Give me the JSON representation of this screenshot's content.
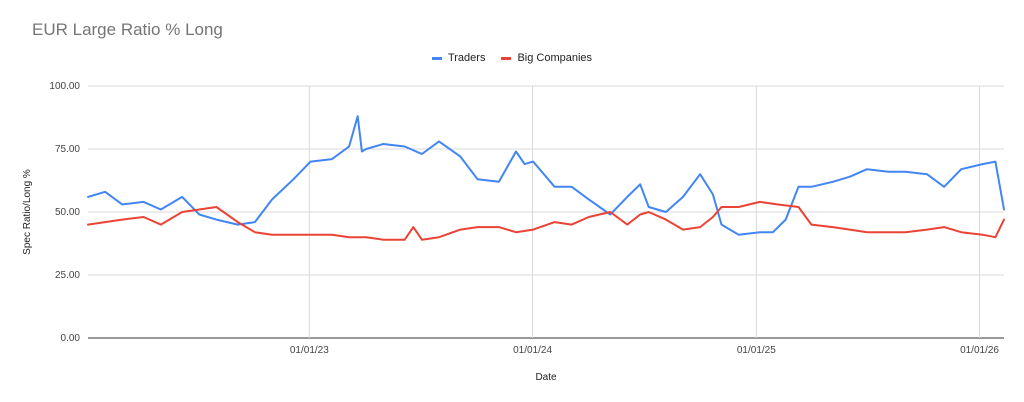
{
  "chart_data": {
    "type": "line",
    "title": "EUR Large Ratio % Long",
    "xlabel": "Date",
    "ylabel": "Spec Ratio/Long %",
    "ylim": [
      0,
      100
    ],
    "y_ticks": [
      "0.00",
      "25.00",
      "50.00",
      "75.00",
      "100.00"
    ],
    "x_ticks": [
      "01/01/23",
      "01/01/24",
      "01/01/25",
      "01/01/26"
    ],
    "x_range": [
      "2022-01-04",
      "2026-02-10"
    ],
    "legend_position": "top",
    "grid": true,
    "series": [
      {
        "name": "Traders",
        "color": "#4285f4",
        "x": [
          "2022-01-04",
          "2022-02-01",
          "2022-03-01",
          "2022-04-05",
          "2022-05-03",
          "2022-06-07",
          "2022-07-05",
          "2022-08-02",
          "2022-09-06",
          "2022-10-04",
          "2022-11-01",
          "2022-12-06",
          "2023-01-03",
          "2023-02-07",
          "2023-03-07",
          "2023-03-21",
          "2023-03-28",
          "2023-04-04",
          "2023-05-02",
          "2023-06-06",
          "2023-07-04",
          "2023-08-01",
          "2023-09-05",
          "2023-10-03",
          "2023-11-07",
          "2023-12-05",
          "2023-12-19",
          "2024-01-02",
          "2024-02-06",
          "2024-03-05",
          "2024-04-02",
          "2024-05-07",
          "2024-06-04",
          "2024-06-25",
          "2024-07-09",
          "2024-08-06",
          "2024-09-03",
          "2024-10-01",
          "2024-10-22",
          "2024-11-05",
          "2024-12-03",
          "2025-01-07",
          "2025-01-28",
          "2025-02-18",
          "2025-03-11",
          "2025-04-01",
          "2025-05-06",
          "2025-06-03",
          "2025-07-01",
          "2025-08-05",
          "2025-09-02",
          "2025-10-07",
          "2025-11-04",
          "2025-12-02",
          "2026-01-06",
          "2026-01-27",
          "2026-02-10"
        ],
        "values": [
          56,
          58,
          53,
          54,
          51,
          56,
          49,
          47,
          45,
          46,
          55,
          63,
          70,
          71,
          76,
          88,
          74,
          75,
          77,
          76,
          73,
          78,
          72,
          63,
          62,
          74,
          69,
          70,
          60,
          60,
          55,
          49,
          56,
          61,
          52,
          50,
          56,
          65,
          57,
          45,
          41,
          42,
          42,
          47,
          60,
          60,
          62,
          64,
          67,
          66,
          66,
          65,
          60,
          67,
          69,
          70,
          51
        ]
      },
      {
        "name": "Big Companies",
        "color": "#ea4335",
        "x": [
          "2022-01-04",
          "2022-02-01",
          "2022-03-01",
          "2022-04-05",
          "2022-05-03",
          "2022-06-07",
          "2022-07-05",
          "2022-08-02",
          "2022-09-06",
          "2022-10-04",
          "2022-11-01",
          "2022-12-06",
          "2023-01-03",
          "2023-02-07",
          "2023-03-07",
          "2023-04-04",
          "2023-05-02",
          "2023-06-06",
          "2023-06-20",
          "2023-07-04",
          "2023-08-01",
          "2023-09-05",
          "2023-10-03",
          "2023-11-07",
          "2023-12-05",
          "2024-01-02",
          "2024-02-06",
          "2024-03-05",
          "2024-04-02",
          "2024-05-07",
          "2024-06-04",
          "2024-06-25",
          "2024-07-09",
          "2024-08-06",
          "2024-09-03",
          "2024-10-01",
          "2024-10-22",
          "2024-11-05",
          "2024-12-03",
          "2025-01-07",
          "2025-02-04",
          "2025-03-11",
          "2025-04-01",
          "2025-05-06",
          "2025-06-03",
          "2025-07-01",
          "2025-08-05",
          "2025-09-02",
          "2025-10-07",
          "2025-11-04",
          "2025-12-02",
          "2026-01-06",
          "2026-01-27",
          "2026-02-10"
        ],
        "values": [
          45,
          46,
          47,
          48,
          45,
          50,
          51,
          52,
          46,
          42,
          41,
          41,
          41,
          41,
          40,
          40,
          39,
          39,
          44,
          39,
          40,
          43,
          44,
          44,
          42,
          43,
          46,
          45,
          48,
          50,
          45,
          49,
          50,
          47,
          43,
          44,
          48,
          52,
          52,
          54,
          53,
          52,
          45,
          44,
          43,
          42,
          42,
          42,
          43,
          44,
          42,
          41,
          40,
          47
        ]
      }
    ]
  }
}
